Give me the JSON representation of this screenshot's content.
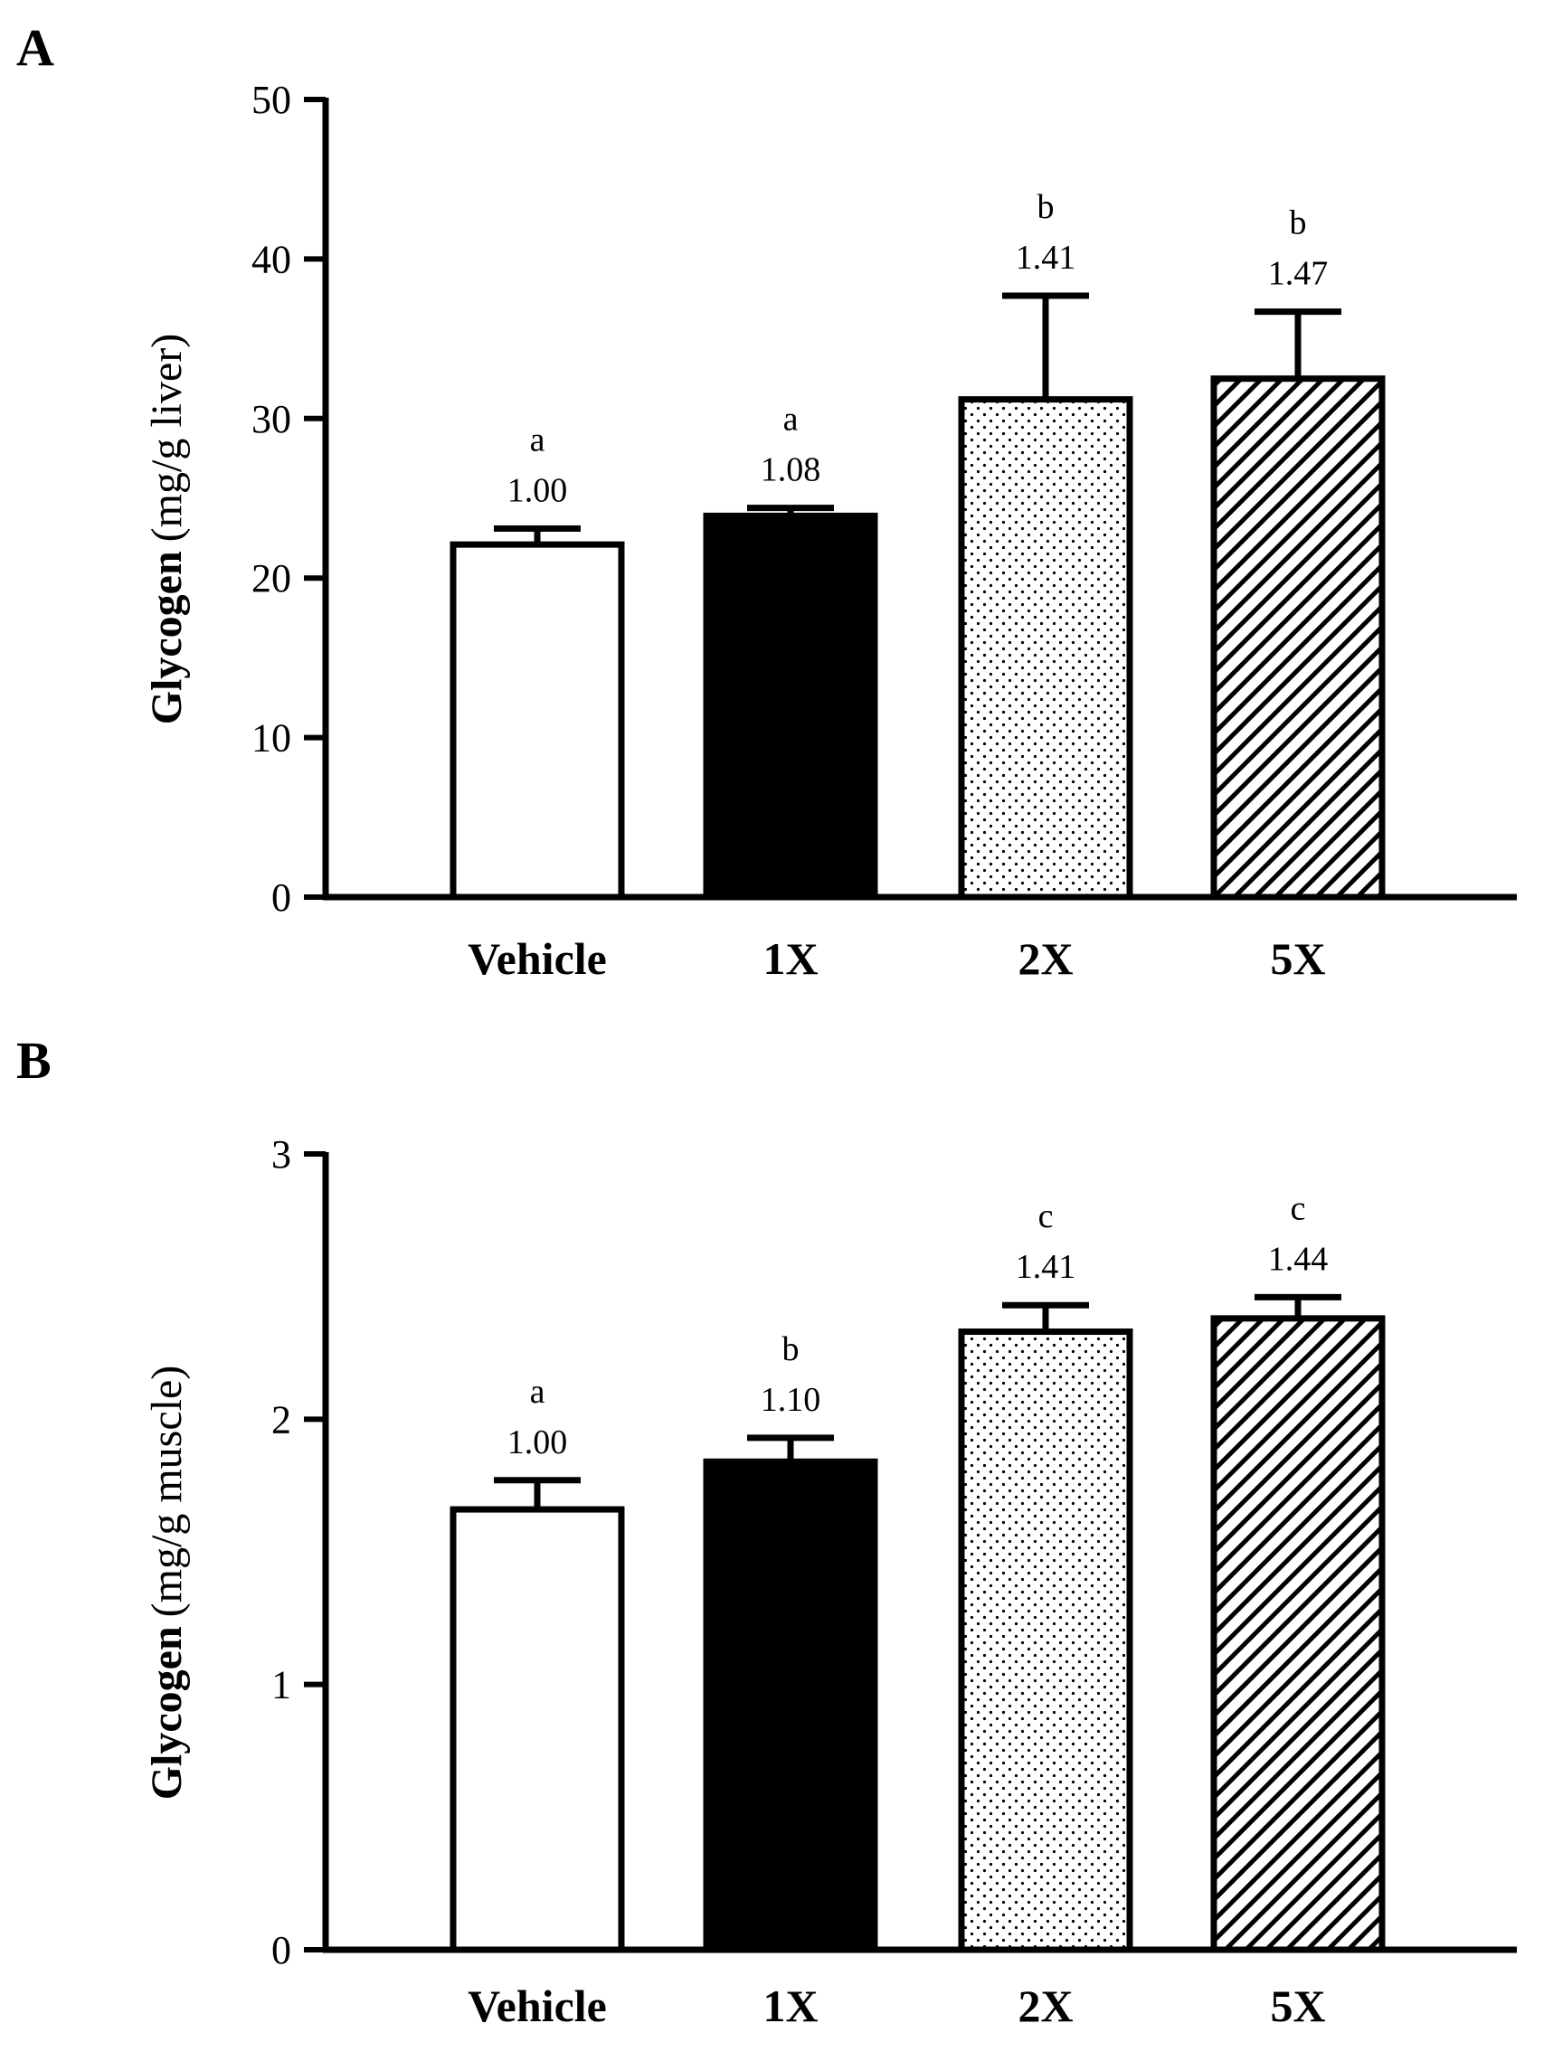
{
  "chart_data": [
    {
      "panel": "A",
      "type": "bar",
      "categories": [
        "Vehicle",
        "1X",
        "2X",
        "5X"
      ],
      "values": [
        22.1,
        23.9,
        31.2,
        32.5
      ],
      "errors": [
        1.0,
        0.5,
        6.5,
        4.2
      ],
      "fills": [
        "white",
        "black",
        "dots",
        "hatch"
      ],
      "fold_labels": [
        "1.00",
        "1.08",
        "1.41",
        "1.47"
      ],
      "sig_letters": [
        "a",
        "a",
        "b",
        "b"
      ],
      "ylabel_bold": "Glycogen",
      "ylabel_rest": "(mg/g liver)",
      "xlabel": "",
      "ylim": [
        0,
        50
      ],
      "yticks": [
        0,
        10,
        20,
        30,
        40,
        50
      ],
      "ytick_labels": [
        "0",
        "10",
        "20",
        "30",
        "40",
        "50"
      ],
      "grid": false,
      "colors": {
        "bar_edge": "#000000",
        "bar_solid": "#000000",
        "bar_white": "#ffffff"
      }
    },
    {
      "panel": "B",
      "type": "bar",
      "categories": [
        "Vehicle",
        "1X",
        "2X",
        "5X"
      ],
      "values": [
        1.66,
        1.84,
        2.33,
        2.38
      ],
      "errors": [
        0.11,
        0.09,
        0.1,
        0.08
      ],
      "fills": [
        "white",
        "black",
        "dots",
        "hatch"
      ],
      "fold_labels": [
        "1.00",
        "1.10",
        "1.41",
        "1.44"
      ],
      "sig_letters": [
        "a",
        "b",
        "c",
        "c"
      ],
      "ylabel_bold": "Glycogen",
      "ylabel_rest": "(mg/g muscle)",
      "xlabel": "",
      "ylim": [
        0,
        3
      ],
      "yticks": [
        0,
        1,
        2,
        3
      ],
      "ytick_labels": [
        "0",
        "1",
        "2",
        "3"
      ],
      "grid": false,
      "colors": {
        "bar_edge": "#000000",
        "bar_solid": "#000000",
        "bar_white": "#ffffff"
      }
    }
  ]
}
